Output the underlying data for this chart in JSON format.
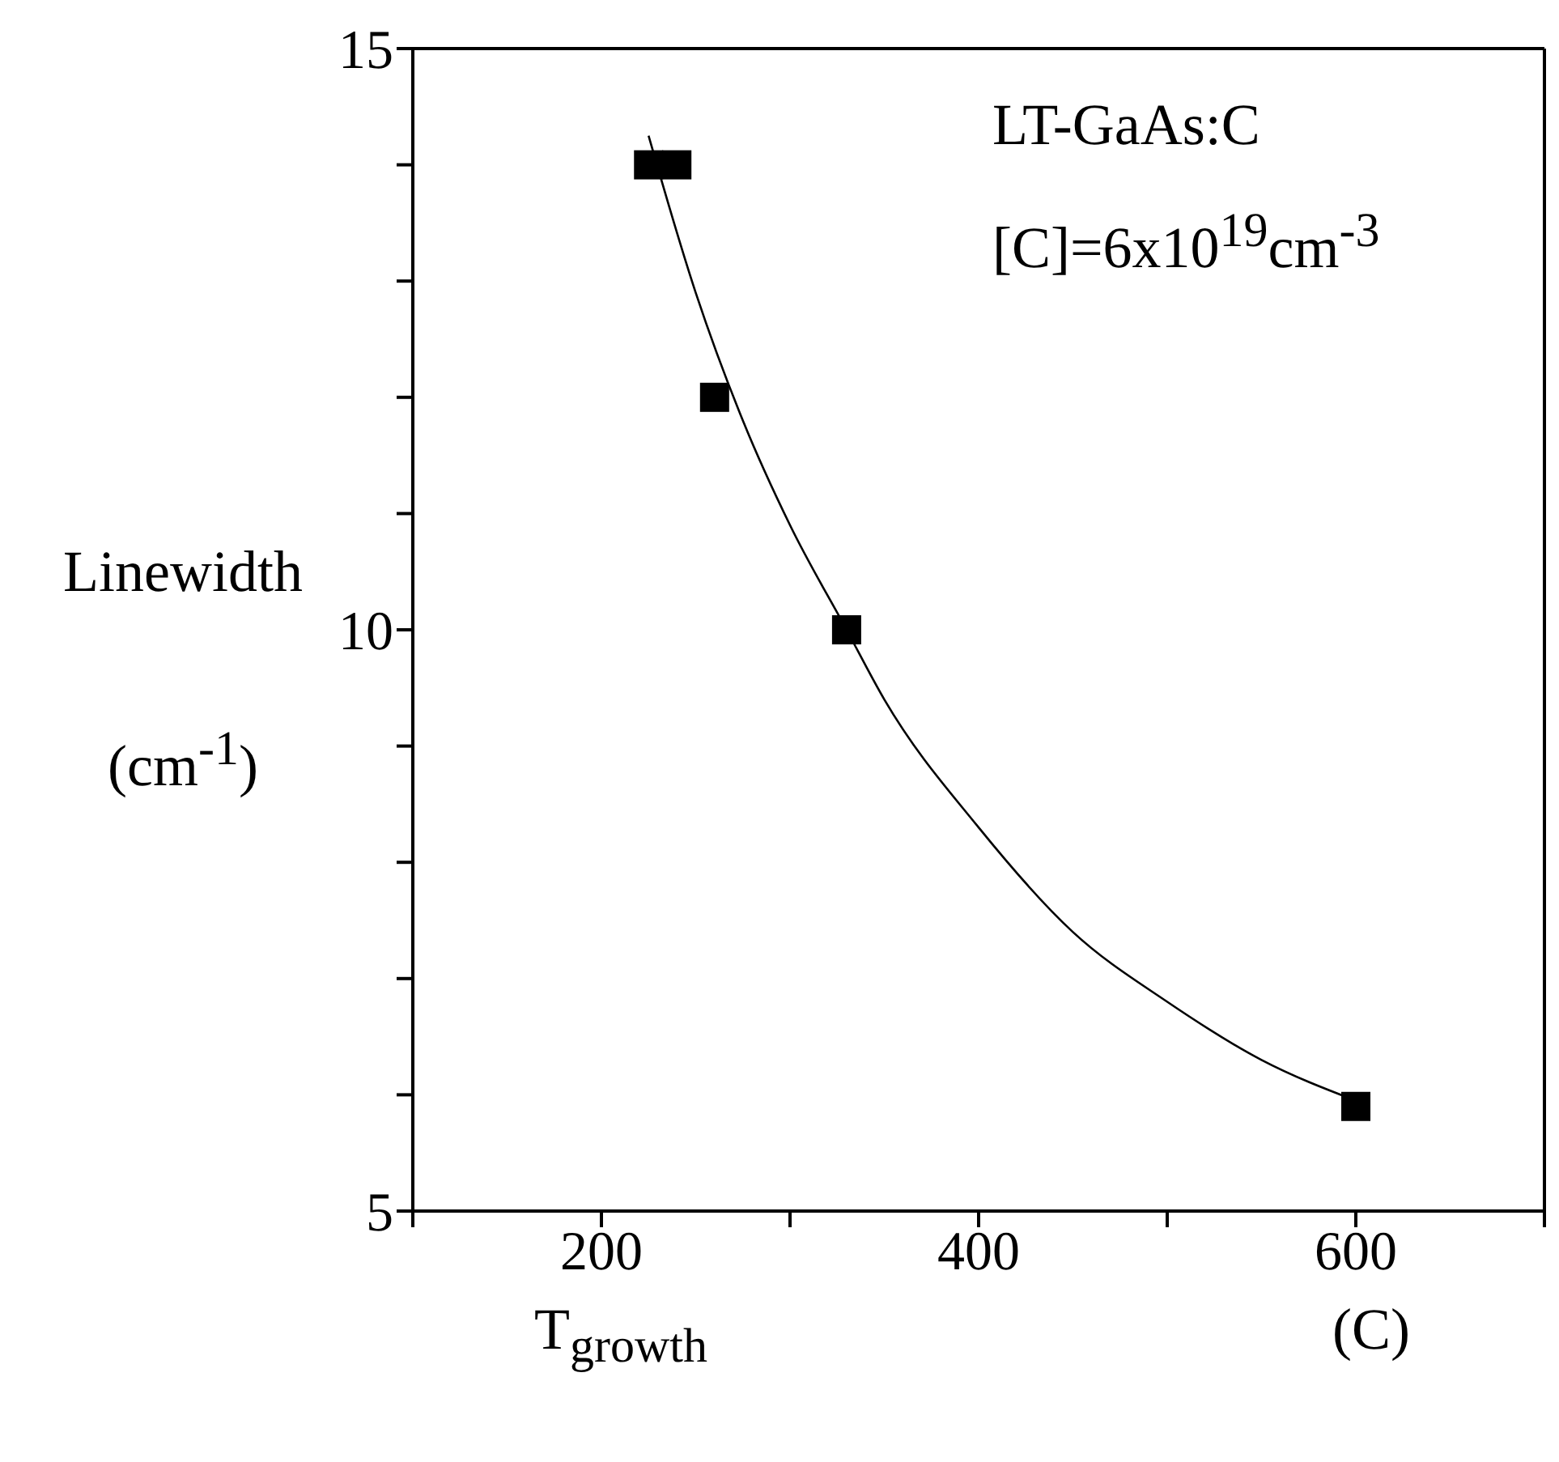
{
  "chart_data": {
    "type": "scatter",
    "xlabel": "T$_{growth}$",
    "ylabel": "Linewidth (cm$^{-1}$)",
    "annotations": [
      "LT-GaAs:C",
      "[C]=6x10$^{19}$cm$^{-3}$",
      "(C)"
    ],
    "xlim": [
      100,
      700
    ],
    "xticks": [
      {
        "value": 100,
        "label": null
      },
      200,
      {
        "value": 300,
        "label": null
      },
      400,
      {
        "value": 500,
        "label": null
      },
      600,
      {
        "value": 700,
        "label": null
      }
    ],
    "ylim": [
      5,
      15
    ],
    "yticks": [
      5,
      {
        "value": 6,
        "label": null
      },
      {
        "value": 7,
        "label": null
      },
      {
        "value": 8,
        "label": null
      },
      {
        "value": 9,
        "label": null
      },
      10,
      {
        "value": 11,
        "label": null
      },
      {
        "value": 12,
        "label": null
      },
      {
        "value": 13,
        "label": null
      },
      {
        "value": 14,
        "label": null
      },
      15
    ],
    "grid": false,
    "legend": false,
    "series": [
      {
        "type": "scatter",
        "color": "#000000",
        "marker": "square",
        "x": [
          225,
          240,
          260,
          330,
          600
        ],
        "values": [
          14,
          14,
          12,
          10,
          5.9
        ]
      },
      {
        "type": "line",
        "color": "#000000",
        "marker": "none",
        "x": [
          225,
          250,
          275,
          300,
          330,
          350,
          400,
          450,
          500,
          550,
          600
        ],
        "values": [
          14.25,
          12.9,
          11.8,
          10.9,
          10,
          9.4,
          8.3,
          7.4,
          6.8,
          6.3,
          5.95
        ]
      }
    ]
  }
}
